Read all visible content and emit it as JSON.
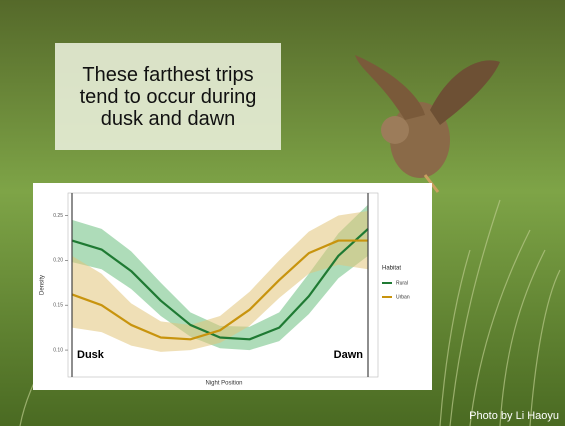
{
  "slide": {
    "caption": "These farthest trips tend to occur during dusk and dawn",
    "credit": "Photo by Li Haoyu"
  },
  "chart_data": {
    "type": "line",
    "x_label": "Night Position",
    "y_label": "Density",
    "legend_title": "Habitat",
    "x": [
      0,
      0.1,
      0.2,
      0.3,
      0.4,
      0.5,
      0.6,
      0.7,
      0.8,
      0.9,
      1
    ],
    "xlim": [
      0,
      1
    ],
    "ylim": [
      0.07,
      0.275
    ],
    "yticks": [
      {
        "value": 0.1,
        "label": "0.10"
      },
      0.15,
      {
        "value": 0.2,
        "label": "0.20"
      },
      0.25
    ],
    "annotations": [
      "Dusk",
      "Dawn"
    ],
    "series": [
      {
        "name": "Rural",
        "color": "#1f7a33",
        "band_color": "#6cbf7f",
        "values": [
          0.222,
          0.212,
          0.188,
          0.155,
          0.128,
          0.114,
          0.112,
          0.125,
          0.16,
          0.205,
          0.235
        ],
        "lower": [
          0.198,
          0.19,
          0.168,
          0.138,
          0.115,
          0.102,
          0.1,
          0.11,
          0.14,
          0.18,
          0.205
        ],
        "upper": [
          0.245,
          0.235,
          0.21,
          0.175,
          0.142,
          0.127,
          0.126,
          0.142,
          0.185,
          0.23,
          0.262
        ]
      },
      {
        "name": "Urban",
        "color": "#c8940e",
        "band_color": "#e2c47a",
        "values": [
          0.162,
          0.15,
          0.128,
          0.114,
          0.112,
          0.122,
          0.145,
          0.178,
          0.208,
          0.222,
          0.222
        ],
        "lower": [
          0.125,
          0.12,
          0.105,
          0.098,
          0.1,
          0.108,
          0.127,
          0.158,
          0.185,
          0.195,
          0.19
        ],
        "upper": [
          0.205,
          0.185,
          0.152,
          0.132,
          0.128,
          0.138,
          0.165,
          0.2,
          0.232,
          0.25,
          0.255
        ]
      }
    ]
  }
}
